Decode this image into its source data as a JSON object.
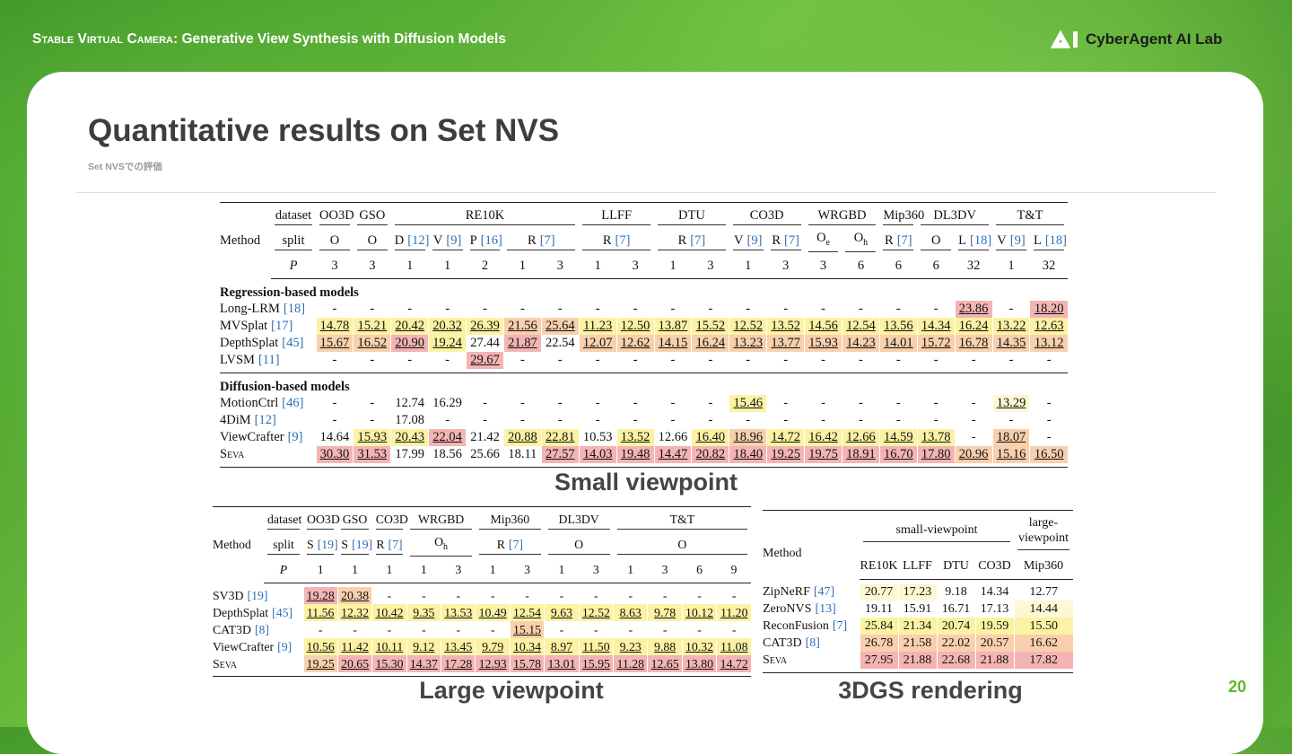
{
  "header": {
    "series_name": "Stable Virtual Camera",
    "subtitle": ": Generative View Synthesis with Diffusion Models",
    "logo": "CyberAgent AI Lab"
  },
  "slide": {
    "title": "Quantitative results on Set NVS",
    "subtitle": "Set NVSでの評価",
    "page": "20"
  },
  "tables": [
    {
      "caption": "Small viewpoint",
      "method_label": "Method",
      "row_labels": [
        "dataset",
        "split",
        "P"
      ],
      "datasets": [
        {
          "name": "OO3D",
          "span": 1
        },
        {
          "name": "GSO",
          "span": 1
        },
        {
          "name": "RE10K",
          "span": 5
        },
        {
          "name": "LLFF",
          "span": 2
        },
        {
          "name": "DTU",
          "span": 2
        },
        {
          "name": "CO3D",
          "span": 2
        },
        {
          "name": "WRGBD",
          "span": 2
        },
        {
          "name": "Mip360",
          "span": 1
        },
        {
          "name": "DL3DV",
          "span": 2
        },
        {
          "name": "T&T",
          "span": 2
        }
      ],
      "splits": [
        {
          "text": "O"
        },
        {
          "text": "O"
        },
        {
          "text": "D",
          "cite": "[12]"
        },
        {
          "text": "V",
          "cite": "[9]"
        },
        {
          "text": "P",
          "cite": "[16]"
        },
        {
          "text": "R",
          "cite": "[7]",
          "span": 2
        },
        {
          "text": "R",
          "cite": "[7]",
          "span": 2
        },
        {
          "text": "R",
          "cite": "[7]",
          "span": 2
        },
        {
          "text": "V",
          "cite": "[9]"
        },
        {
          "text": "R",
          "cite": "[7]"
        },
        {
          "text": "O",
          "sub": "e"
        },
        {
          "text": "O",
          "sub": "h"
        },
        {
          "text": "R",
          "cite": "[7]"
        },
        {
          "text": "O"
        },
        {
          "text": "L",
          "cite": "[18]"
        },
        {
          "text": "V",
          "cite": "[9]"
        },
        {
          "text": "L",
          "cite": "[18]"
        }
      ],
      "P": [
        "3",
        "3",
        "1",
        "1",
        "2",
        "1",
        "3",
        "1",
        "3",
        "1",
        "3",
        "1",
        "3",
        "3",
        "6",
        "6",
        "6",
        "32",
        "1",
        "32"
      ],
      "sections": [
        {
          "name": "Regression-based models",
          "rows": [
            {
              "method": {
                "text": "Long-LRM",
                "cite": "[18]"
              },
              "cells": [
                "-",
                "-",
                "-",
                "-",
                "-",
                "-",
                "-",
                "-",
                "-",
                "-",
                "-",
                "-",
                "-",
                "-",
                "-",
                "-",
                "-",
                "23.86",
                "-",
                "18.20"
              ],
              "colors": [
                null,
                null,
                null,
                null,
                null,
                null,
                null,
                null,
                null,
                null,
                null,
                null,
                null,
                null,
                null,
                null,
                null,
                "#f4b4b4",
                null,
                "#f4b4b4"
              ]
            },
            {
              "method": {
                "text": "MVSplat",
                "cite": "[17]"
              },
              "cells": [
                "14.78",
                "15.21",
                "20.42",
                "20.32",
                "26.39",
                "21.56",
                "25.64",
                "11.23",
                "12.50",
                "13.87",
                "15.52",
                "12.52",
                "13.52",
                "14.56",
                "12.54",
                "13.56",
                "14.34",
                "16.24",
                "13.22",
                "12.63"
              ],
              "colors": [
                "#fbf2a3",
                "#fbf2a3",
                "#fbf2a3",
                "#fbf2a3",
                "#fbf2a3",
                "#f9d0ad",
                "#f9d0ad",
                "#fbf2a3",
                "#fbf2a3",
                "#fbf2a3",
                "#fbf2a3",
                "#fbf2a3",
                "#fbf2a3",
                "#fbf2a3",
                "#fbf2a3",
                "#fbf2a3",
                "#fbf2a3",
                "#fbf2a3",
                "#fbf2a3",
                "#fbf2a3"
              ]
            },
            {
              "method": {
                "text": "DepthSplat",
                "cite": "[45]"
              },
              "cells": [
                "15.67",
                "16.52",
                "20.90",
                "19.24",
                "27.44",
                "21.87",
                "22.54",
                "12.07",
                "12.62",
                "14.15",
                "16.24",
                "13.23",
                "13.77",
                "15.93",
                "14.23",
                "14.01",
                "15.72",
                "16.78",
                "14.35",
                "13.12"
              ],
              "colors": [
                "#f9d0ad",
                "#f9d0ad",
                "#f4b4b4",
                "#fbf2a3",
                null,
                "#f4b4b4",
                null,
                "#f9d0ad",
                "#f9d0ad",
                "#f9d0ad",
                "#f9d0ad",
                "#f9d0ad",
                "#f9d0ad",
                "#f9d0ad",
                "#f9d0ad",
                "#f9d0ad",
                "#f9d0ad",
                "#f9d0ad",
                "#f9d0ad",
                "#f9d0ad"
              ]
            },
            {
              "method": {
                "text": "LVSM",
                "cite": "[11]"
              },
              "cells": [
                "-",
                "-",
                "-",
                "-",
                "29.67",
                "-",
                "-",
                "-",
                "-",
                "-",
                "-",
                "-",
                "-",
                "-",
                "-",
                "-",
                "-",
                "-",
                "-",
                "-"
              ],
              "colors": [
                null,
                null,
                null,
                null,
                "#f4b4b4",
                null,
                null,
                null,
                null,
                null,
                null,
                null,
                null,
                null,
                null,
                null,
                null,
                null,
                null,
                null
              ]
            }
          ]
        },
        {
          "name": "Diffusion-based models",
          "rows": [
            {
              "method": {
                "text": "MotionCtrl",
                "cite": "[46]"
              },
              "cells": [
                "-",
                "-",
                "12.74",
                "16.29",
                "-",
                "-",
                "-",
                "-",
                "-",
                "-",
                "-",
                "15.46",
                "-",
                "-",
                "-",
                "-",
                "-",
                "-",
                "13.29",
                "-"
              ],
              "colors": [
                null,
                null,
                null,
                null,
                null,
                null,
                null,
                null,
                null,
                null,
                null,
                "#fbf2a3",
                null,
                null,
                null,
                null,
                null,
                null,
                "#fdf8d3",
                null
              ]
            },
            {
              "method": {
                "text": "4DiM",
                "cite": "[12]"
              },
              "cells": [
                "-",
                "-",
                "17.08",
                "-",
                "-",
                "-",
                "-",
                "-",
                "-",
                "-",
                "-",
                "-",
                "-",
                "-",
                "-",
                "-",
                "-",
                "-",
                "-",
                "-"
              ]
            },
            {
              "method": {
                "text": "ViewCrafter",
                "cite": "[9]"
              },
              "cells": [
                "14.64",
                "15.93",
                "20.43",
                "22.04",
                "21.42",
                "20.88",
                "22.81",
                "10.53",
                "13.52",
                "12.66",
                "16.40",
                "18.96",
                "14.72",
                "16.42",
                "12.66",
                "14.59",
                "13.78",
                "-",
                "18.07",
                "-"
              ],
              "colors": [
                null,
                "#fbf2a3",
                "#fbf2a3",
                "#f4b4b4",
                null,
                "#fbf2a3",
                "#fbf2a3",
                null,
                "#fbf2a3",
                null,
                "#fbf2a3",
                "#f9d0ad",
                "#fbf2a3",
                "#fbf2a3",
                "#fbf2a3",
                "#fbf2a3",
                "#fbf2a3",
                null,
                "#f9d0ad",
                null
              ]
            },
            {
              "method": {
                "text": "Seva",
                "small_caps": true
              },
              "cells": [
                "30.30",
                "31.53",
                "17.99",
                "18.56",
                "25.66",
                "18.11",
                "27.57",
                "14.03",
                "19.48",
                "14.47",
                "20.82",
                "18.40",
                "19.25",
                "19.75",
                "18.91",
                "16.70",
                "17.80",
                "20.96",
                "15.16",
                "16.50"
              ],
              "colors": [
                "#f4b4b4",
                "#f4b4b4",
                null,
                null,
                null,
                null,
                "#f4b4b4",
                "#f4b4b4",
                "#f4b4b4",
                "#f4b4b4",
                "#f4b4b4",
                "#f4b4b4",
                "#f4b4b4",
                "#f4b4b4",
                "#f4b4b4",
                "#f4b4b4",
                "#f4b4b4",
                "#f9d0ad",
                "#f9d0ad",
                "#f9d0ad"
              ]
            }
          ]
        }
      ]
    },
    {
      "caption": "Large viewpoint",
      "method_label": "Method",
      "row_labels": [
        "dataset",
        "split",
        "P"
      ],
      "datasets": [
        {
          "name": "OO3D",
          "span": 1
        },
        {
          "name": "GSO",
          "span": 1
        },
        {
          "name": "CO3D",
          "span": 1
        },
        {
          "name": "WRGBD",
          "span": 2
        },
        {
          "name": "Mip360",
          "span": 2
        },
        {
          "name": "DL3DV",
          "span": 2
        },
        {
          "name": "T&T",
          "span": 4
        }
      ],
      "splits": [
        {
          "text": "S",
          "cite": "[19]"
        },
        {
          "text": "S",
          "cite": "[19]"
        },
        {
          "text": "R",
          "cite": "[7]"
        },
        {
          "text": "O",
          "sub": "h",
          "span": 2
        },
        {
          "text": "R",
          "cite": "[7]",
          "span": 2
        },
        {
          "text": "O",
          "span": 2
        },
        {
          "text": "O",
          "span": 4
        }
      ],
      "P": [
        "1",
        "1",
        "1",
        "1",
        "3",
        "1",
        "3",
        "1",
        "3",
        "1",
        "3",
        "6",
        "9"
      ],
      "sections": [
        {
          "rows": [
            {
              "method": {
                "text": "SV3D",
                "cite": "[19]"
              },
              "cells": [
                "19.28",
                "20.38",
                "-",
                "-",
                "-",
                "-",
                "-",
                "-",
                "-",
                "-",
                "-",
                "-",
                "-"
              ],
              "colors": [
                "#f4b4b4",
                "#f9d0ad",
                null,
                null,
                null,
                null,
                null,
                null,
                null,
                null,
                null,
                null,
                null
              ]
            },
            {
              "method": {
                "text": "DepthSplat",
                "cite": "[45]"
              },
              "cells": [
                "11.56",
                "12.32",
                "10.42",
                "9.35",
                "13.53",
                "10.49",
                "12.54",
                "9.63",
                "12.52",
                "8.63",
                "9.78",
                "10.12",
                "11.20"
              ],
              "colors": [
                "#fbf2a3",
                "#fbf2a3",
                "#fbf2a3",
                "#fbf2a3",
                "#fbf2a3",
                "#fbf2a3",
                "#fbf2a3",
                "#fbf2a3",
                "#fbf2a3",
                "#fbf2a3",
                "#fbf2a3",
                "#fbf2a3",
                "#fbf2a3"
              ]
            },
            {
              "method": {
                "text": "CAT3D",
                "cite": "[8]"
              },
              "cells": [
                "-",
                "-",
                "-",
                "-",
                "-",
                "-",
                "15.15",
                "-",
                "-",
                "-",
                "-",
                "-",
                "-"
              ],
              "colors": [
                null,
                null,
                null,
                null,
                null,
                null,
                "#f9d0ad",
                null,
                null,
                null,
                null,
                null,
                null
              ]
            },
            {
              "method": {
                "text": "ViewCrafter",
                "cite": "[9]"
              },
              "cells": [
                "10.56",
                "11.42",
                "10.11",
                "9.12",
                "13.45",
                "9.79",
                "10.34",
                "8.97",
                "11.50",
                "9.23",
                "9.88",
                "10.32",
                "11.08"
              ],
              "colors": [
                "#fbf2a3",
                "#fbf2a3",
                "#fbf2a3",
                "#fbf2a3",
                "#fbf2a3",
                "#fbf2a3",
                "#fbf2a3",
                "#fbf2a3",
                "#fbf2a3",
                "#fbf2a3",
                "#fbf2a3",
                "#fbf2a3",
                "#fbf2a3"
              ]
            },
            {
              "method": {
                "text": "Seva",
                "small_caps": true
              },
              "cells": [
                "19.25",
                "20.65",
                "15.30",
                "14.37",
                "17.28",
                "12.93",
                "15.78",
                "13.01",
                "15.95",
                "11.28",
                "12.65",
                "13.80",
                "14.72"
              ],
              "colors": [
                "#f9d0ad",
                "#f4b4b4",
                "#f4b4b4",
                "#f4b4b4",
                "#f4b4b4",
                "#f4b4b4",
                "#f4b4b4",
                "#f4b4b4",
                "#f4b4b4",
                "#f4b4b4",
                "#f4b4b4",
                "#f4b4b4",
                "#f4b4b4"
              ]
            }
          ]
        }
      ]
    },
    {
      "caption": "3DGS rendering",
      "method_label": "Method",
      "groups": [
        {
          "name": "small-viewpoint",
          "span": 4
        },
        {
          "name": "large-viewpoint",
          "span": 1
        }
      ],
      "columns": [
        "RE10K",
        "LLFF",
        "DTU",
        "CO3D",
        "Mip360"
      ],
      "rows": [
        {
          "method": {
            "text": "ZipNeRF",
            "cite": "[47]"
          },
          "cells": [
            "20.77",
            "17.23",
            "9.18",
            "14.34",
            "12.77"
          ],
          "colors": [
            "#fdf8d3",
            "#fdf8d3",
            null,
            null,
            null
          ]
        },
        {
          "method": {
            "text": "ZeroNVS",
            "cite": "[13]"
          },
          "cells": [
            "19.11",
            "15.91",
            "16.71",
            "17.13",
            "14.44"
          ],
          "colors": [
            null,
            null,
            null,
            null,
            "#fdf8d3"
          ]
        },
        {
          "method": {
            "text": "ReconFusion",
            "cite": "[7]"
          },
          "cells": [
            "25.84",
            "21.34",
            "20.74",
            "19.59",
            "15.50"
          ],
          "colors": [
            "#fbf2a3",
            "#fbf2a3",
            "#fbf2a3",
            "#fbf2a3",
            "#fbf2a3"
          ]
        },
        {
          "method": {
            "text": "CAT3D",
            "cite": "[8]"
          },
          "cells": [
            "26.78",
            "21.58",
            "22.02",
            "20.57",
            "16.62"
          ],
          "colors": [
            "#f9d0ad",
            "#f9d0ad",
            "#f9d0ad",
            "#f9d0ad",
            "#f9d0ad"
          ]
        },
        {
          "method": {
            "text": "Seva",
            "small_caps": true
          },
          "cells": [
            "27.95",
            "21.88",
            "22.68",
            "21.88",
            "17.82"
          ],
          "colors": [
            "#f4b4b4",
            "#f4b4b4",
            "#f4b4b4",
            "#f4b4b4",
            "#f4b4b4"
          ]
        }
      ]
    }
  ]
}
